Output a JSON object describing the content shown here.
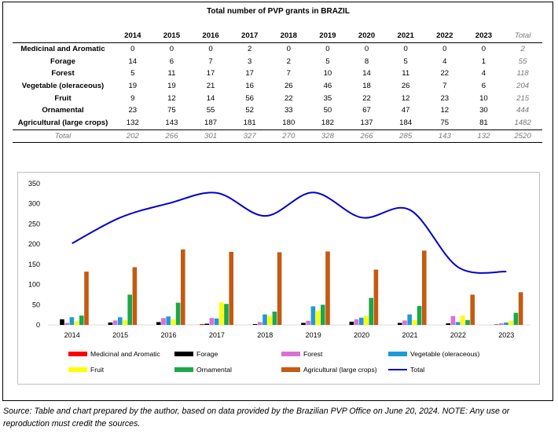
{
  "title": "Total number of PVP grants in BRAZIL",
  "table": {
    "columns": [
      "2014",
      "2015",
      "2016",
      "2017",
      "2018",
      "2019",
      "2020",
      "2021",
      "2022",
      "2023"
    ],
    "total_header": "Total",
    "rows": [
      {
        "label": "Medicinal and Aromatic",
        "values": [
          "0",
          "0",
          "0",
          "2",
          "0",
          "0",
          "0",
          "0",
          "0",
          "0"
        ],
        "total": "2"
      },
      {
        "label": "Forage",
        "values": [
          "14",
          "6",
          "7",
          "3",
          "2",
          "5",
          "8",
          "5",
          "4",
          "1"
        ],
        "total": "55"
      },
      {
        "label": "Forest",
        "values": [
          "5",
          "11",
          "17",
          "17",
          "7",
          "10",
          "14",
          "11",
          "22",
          "4"
        ],
        "total": "118"
      },
      {
        "label": "Vegetable (oleraceous)",
        "values": [
          "19",
          "19",
          "21",
          "16",
          "26",
          "46",
          "18",
          "26",
          "7",
          "6"
        ],
        "total": "204"
      },
      {
        "label": "Fruit",
        "values": [
          "9",
          "12",
          "14",
          "56",
          "22",
          "35",
          "22",
          "12",
          "23",
          "10"
        ],
        "total": "215"
      },
      {
        "label": "Ornamental",
        "values": [
          "23",
          "75",
          "55",
          "52",
          "33",
          "50",
          "67",
          "47",
          "12",
          "30"
        ],
        "total": "444"
      },
      {
        "label": "Agricultural (large crops)",
        "values": [
          "132",
          "143",
          "187",
          "181",
          "180",
          "182",
          "137",
          "184",
          "75",
          "81"
        ],
        "total": "1482"
      }
    ],
    "total_row": {
      "label": "Total",
      "values": [
        "202",
        "266",
        "301",
        "327",
        "270",
        "328",
        "266",
        "285",
        "143",
        "132"
      ],
      "total": "2520"
    }
  },
  "chart_data": {
    "type": "bar",
    "categories": [
      "2014",
      "2015",
      "2016",
      "2017",
      "2018",
      "2019",
      "2020",
      "2021",
      "2022",
      "2023"
    ],
    "ylim": [
      0,
      350
    ],
    "yticks": [
      0,
      50,
      100,
      150,
      200,
      250,
      300,
      350
    ],
    "series": [
      {
        "name": "Medicinal and Aromatic",
        "color": "#ff0000",
        "values": [
          0,
          0,
          0,
          2,
          0,
          0,
          0,
          0,
          0,
          0
        ]
      },
      {
        "name": "Forage",
        "color": "#000000",
        "values": [
          14,
          6,
          7,
          3,
          2,
          5,
          8,
          5,
          4,
          1
        ]
      },
      {
        "name": "Forest",
        "color": "#da70d6",
        "values": [
          5,
          11,
          17,
          17,
          7,
          10,
          14,
          11,
          22,
          4
        ]
      },
      {
        "name": "Vegetable (oleraceous)",
        "color": "#1f9ad6",
        "values": [
          19,
          19,
          21,
          16,
          26,
          46,
          18,
          26,
          7,
          6
        ]
      },
      {
        "name": "Fruit",
        "color": "#ffff00",
        "values": [
          9,
          12,
          14,
          56,
          22,
          35,
          22,
          12,
          23,
          10
        ]
      },
      {
        "name": "Ornamental",
        "color": "#1aa84b",
        "values": [
          23,
          75,
          55,
          52,
          33,
          50,
          67,
          47,
          12,
          30
        ]
      },
      {
        "name": "Agricultural (large crops)",
        "color": "#c55a11",
        "values": [
          132,
          143,
          187,
          181,
          180,
          182,
          137,
          184,
          75,
          81
        ]
      }
    ],
    "line_series": {
      "name": "Total",
      "type": "line",
      "color": "#0000cc",
      "values": [
        202,
        266,
        301,
        327,
        270,
        328,
        266,
        285,
        143,
        132
      ]
    },
    "legend": {
      "placement": "bottom"
    }
  },
  "source": "Source: Table and chart prepared by the author, based on data provided by the Brazilian PVP Office on June 20, 2024. NOTE: Any use or reproduction must credit the sources."
}
